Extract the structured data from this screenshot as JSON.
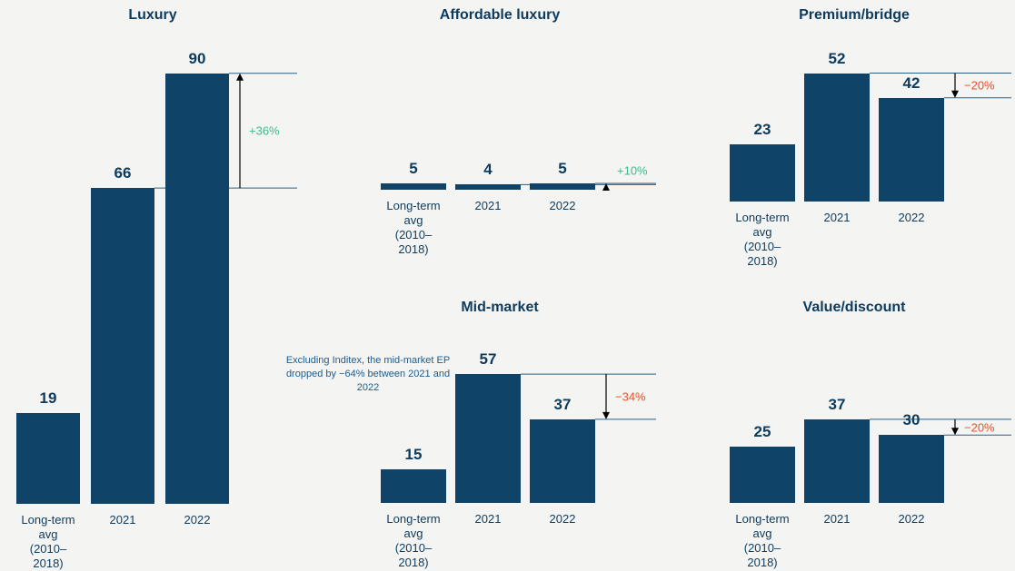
{
  "chart_data": [
    {
      "type": "bar",
      "title": "Luxury",
      "categories": [
        "Long-term avg (2010–2018)",
        "2021",
        "2022"
      ],
      "values": [
        19,
        66,
        90
      ],
      "change": "+36%",
      "change_color": "#3dbb8c",
      "color": "#0f4468"
    },
    {
      "type": "bar",
      "title": "Affordable luxury",
      "categories": [
        "Long-term avg (2010–2018)",
        "2021",
        "2022"
      ],
      "values": [
        5,
        4,
        5
      ],
      "change": "+10%",
      "change_color": "#3dbb8c",
      "color": "#0f4468"
    },
    {
      "type": "bar",
      "title": "Premium/bridge",
      "categories": [
        "Long-term avg (2010–2018)",
        "2021",
        "2022"
      ],
      "values": [
        23,
        52,
        42
      ],
      "change": "−20%",
      "change_color": "#e5502c",
      "color": "#0f4468"
    },
    {
      "type": "bar",
      "title": "Mid-market",
      "categories": [
        "Long-term avg (2010–2018)",
        "2021",
        "2022"
      ],
      "values": [
        15,
        57,
        37
      ],
      "change": "−34%",
      "change_color": "#e5502c",
      "color": "#0f4468",
      "annotation": "Excluding Inditex, the mid-market EP dropped by −64% between 2021 and 2022"
    },
    {
      "type": "bar",
      "title": "Value/discount",
      "categories": [
        "Long-term avg (2010–2018)",
        "2021",
        "2022"
      ],
      "values": [
        25,
        37,
        30
      ],
      "change": "−20%",
      "change_color": "#e5502c",
      "color": "#0f4468"
    }
  ]
}
